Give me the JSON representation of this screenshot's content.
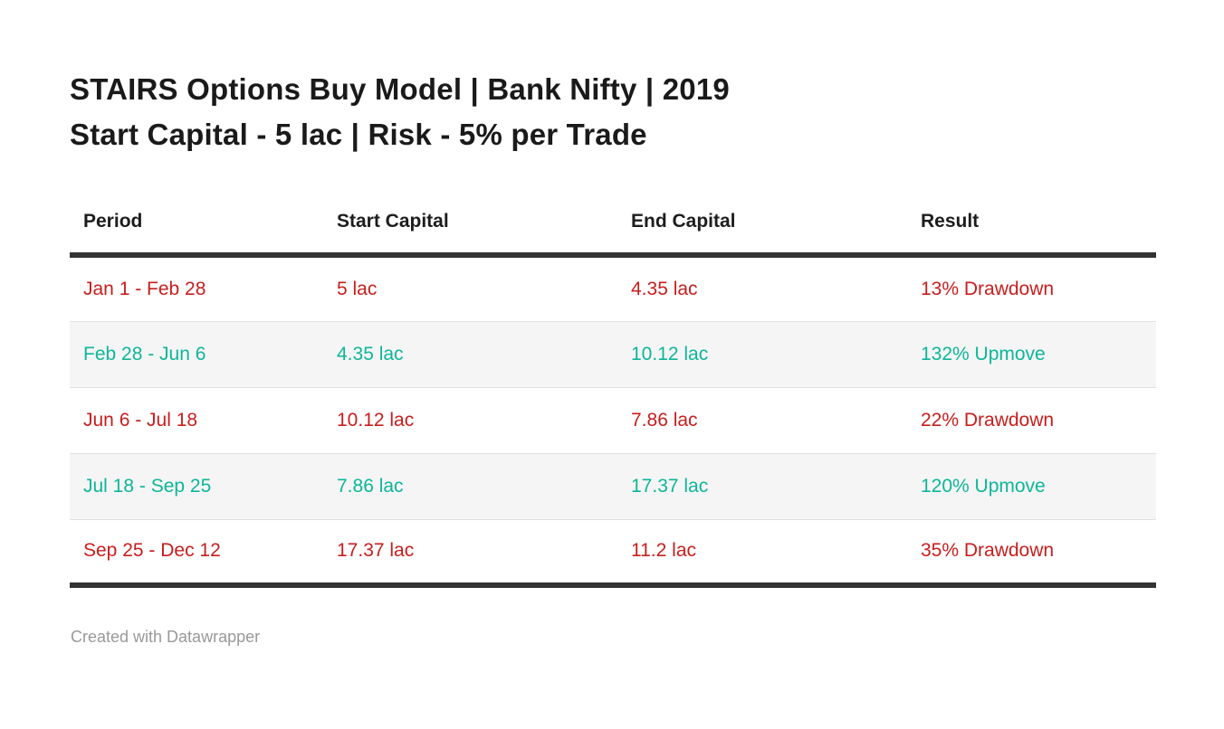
{
  "title": {
    "line1": "STAIRS Options Buy Model | Bank Nifty | 2019",
    "line2": "Start Capital - 5 lac | Risk - 5% per Trade"
  },
  "colors": {
    "drawdown_red": "#c71e1d",
    "upmove_teal": "#0db69a",
    "rule_dark": "#333333",
    "zebra_gray": "#f5f5f5",
    "row_border_gray": "#e0e0e0",
    "credit_gray": "#999999"
  },
  "table": {
    "columns": [
      "Period",
      "Start Capital",
      "End Capital",
      "Result"
    ],
    "column_keys": [
      "period",
      "start_capital",
      "end_capital",
      "result"
    ],
    "rows": [
      {
        "period": "Jan 1 - Feb 28",
        "start_capital": "5 lac",
        "end_capital": "4.35 lac",
        "result": "13% Drawdown",
        "trend": "down"
      },
      {
        "period": "Feb 28 - Jun 6",
        "start_capital": "4.35 lac",
        "end_capital": "10.12 lac",
        "result": "132% Upmove",
        "trend": "up"
      },
      {
        "period": "Jun 6 - Jul 18",
        "start_capital": "10.12 lac",
        "end_capital": "7.86 lac",
        "result": "22% Drawdown",
        "trend": "down"
      },
      {
        "period": "Jul 18 - Sep 25",
        "start_capital": "7.86 lac",
        "end_capital": "17.37 lac",
        "result": "120% Upmove",
        "trend": "up"
      },
      {
        "period": "Sep 25 - Dec 12",
        "start_capital": "17.37 lac",
        "end_capital": "11.2 lac",
        "result": "35% Drawdown",
        "trend": "down"
      }
    ]
  },
  "footer": {
    "credit": "Created with Datawrapper"
  },
  "chart_data": {
    "type": "table",
    "title": "STAIRS Options Buy Model | Bank Nifty | 2019",
    "subtitle": "Start Capital - 5 lac | Risk - 5% per Trade",
    "columns": [
      "Period",
      "Start Capital",
      "End Capital",
      "Result"
    ],
    "rows": [
      [
        "Jan 1 - Feb 28",
        "5 lac",
        "4.35 lac",
        "13% Drawdown"
      ],
      [
        "Feb 28 - Jun 6",
        "4.35 lac",
        "10.12 lac",
        "132% Upmove"
      ],
      [
        "Jun 6 - Jul 18",
        "10.12 lac",
        "7.86 lac",
        "22% Drawdown"
      ],
      [
        "Jul 18 - Sep 25",
        "7.86 lac",
        "17.37 lac",
        "120% Upmove"
      ],
      [
        "Sep 25 - Dec 12",
        "17.37 lac",
        "11.2 lac",
        "35% Drawdown"
      ]
    ],
    "start_capital_lac": [
      5,
      4.35,
      10.12,
      7.86,
      17.37
    ],
    "end_capital_lac": [
      4.35,
      10.12,
      7.86,
      17.37,
      11.2
    ],
    "result_pct": [
      -13,
      132,
      -22,
      120,
      -35
    ],
    "color_coding": {
      "drawdown": "#c71e1d",
      "upmove": "#0db69a"
    },
    "zebra_striping": true,
    "legend": "none",
    "grid": "horizontal-row-rules"
  }
}
